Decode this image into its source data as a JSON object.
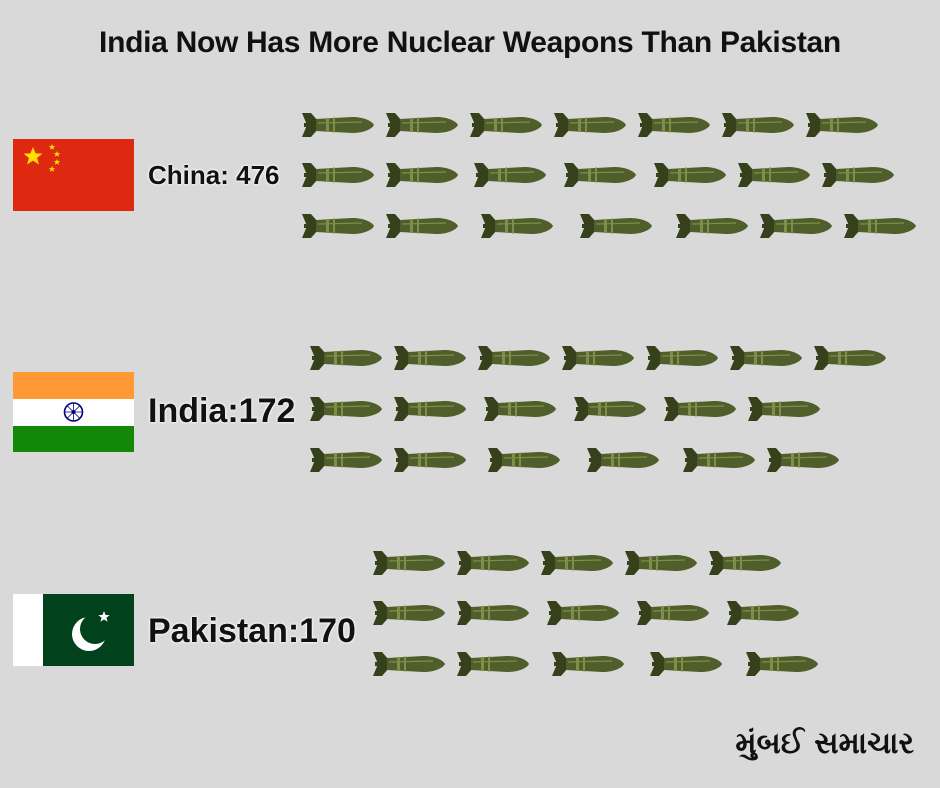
{
  "title": "India Now Has More Nuclear Weapons Than Pakistan",
  "brand": "મુંબઈ સમાચાર",
  "colors": {
    "background": "#d9d9d9",
    "bomb_body": "#4f5e2a",
    "bomb_dark": "#36411b",
    "bomb_band": "#7f8f48"
  },
  "chart_data": {
    "type": "pictograph",
    "title": "India Now Has More Nuclear Weapons Than Pakistan",
    "series": [
      {
        "name": "China",
        "label": "China: 476",
        "value": 476,
        "icon_rows": [
          7,
          7,
          7
        ],
        "flag": "china"
      },
      {
        "name": "India",
        "label": "India:172",
        "value": 172,
        "icon_rows": [
          7,
          6,
          6
        ],
        "flag": "india"
      },
      {
        "name": "Pakistan",
        "label": "Pakistan:170",
        "value": 170,
        "icon_rows": [
          5,
          5,
          5
        ],
        "flag": "pakistan"
      }
    ],
    "icon": "missile-icon"
  }
}
